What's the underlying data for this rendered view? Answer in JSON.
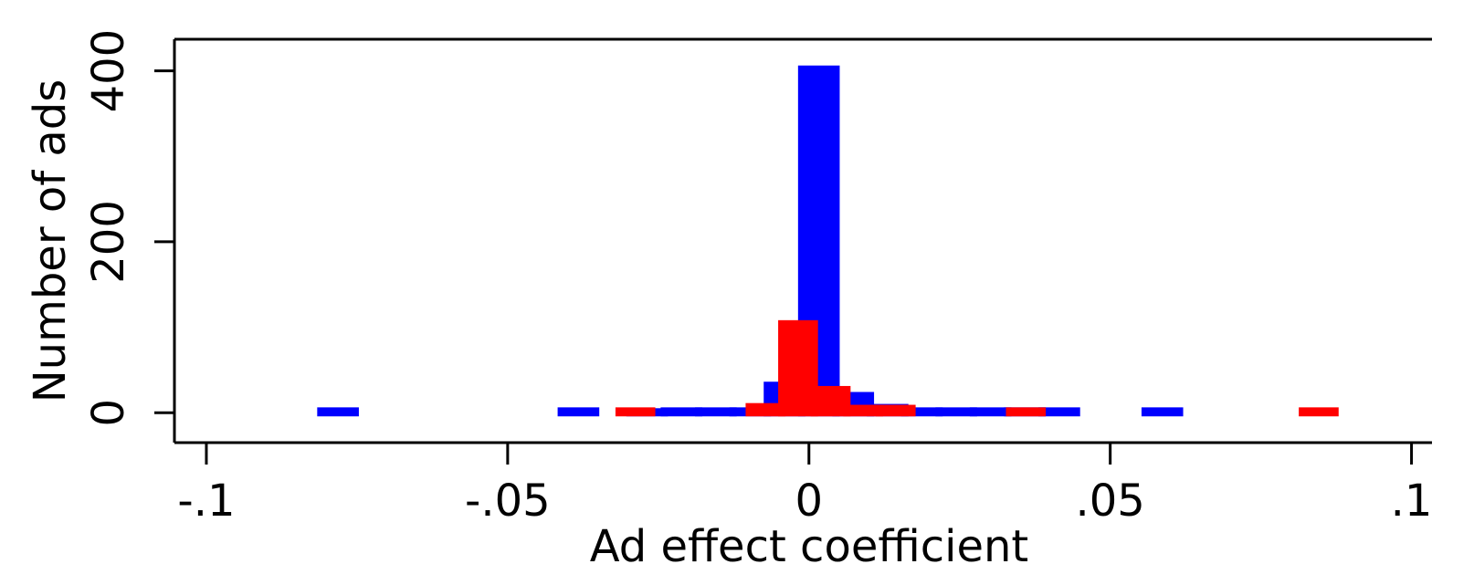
{
  "chart_data": {
    "type": "histogram",
    "x_label": "Ad effect coefficient",
    "y_label": "Number of ads",
    "xlim": [
      -0.1053,
      0.1034
    ],
    "ylim": [
      -35,
      437
    ],
    "xticks": [
      {
        "value": -0.1,
        "label": "-.1"
      },
      {
        "value": -0.05,
        "label": "-.05"
      },
      0,
      {
        "value": 0.05,
        "label": ".05"
      },
      {
        "value": 0.1,
        "label": ".1"
      }
    ],
    "yticks": [
      0,
      200,
      400
    ],
    "series": [
      {
        "color": "#0000ff",
        "bins": [
          -0.081,
          -0.0753,
          -0.0696,
          -0.0639,
          -0.0582,
          -0.0525,
          -0.0468,
          -0.0411,
          -0.0354,
          -0.0297,
          -0.024,
          -0.0183,
          -0.0126,
          -0.0069,
          -0.0012,
          0.0045,
          0.0102,
          0.0159,
          0.0216,
          0.0273,
          0.033,
          0.0387,
          0.0444,
          0.0501,
          0.0558,
          0.0615
        ],
        "values": [
          2,
          0,
          0,
          0,
          0,
          0,
          0,
          2,
          0,
          1,
          2,
          2,
          2,
          32,
          402,
          20,
          6,
          2,
          2,
          2,
          2,
          2,
          0,
          0,
          2
        ]
      },
      {
        "color": "#ff0000",
        "bins": [
          -0.0315,
          -0.0261,
          -0.0207,
          -0.0153,
          -0.0099,
          -0.0045,
          0.0009,
          0.0063,
          0.0117,
          0.0171,
          0.0225,
          0.0279,
          0.0333,
          0.0387,
          0.0441,
          0.0495,
          0.0549,
          0.0603,
          0.0657,
          0.0711,
          0.0765,
          0.0819,
          0.0873
        ],
        "values": [
          2,
          0,
          0,
          0,
          7,
          104,
          27,
          5,
          5,
          0,
          0,
          0,
          2,
          0,
          0,
          0,
          0,
          0,
          0,
          0,
          0,
          2
        ]
      }
    ]
  }
}
